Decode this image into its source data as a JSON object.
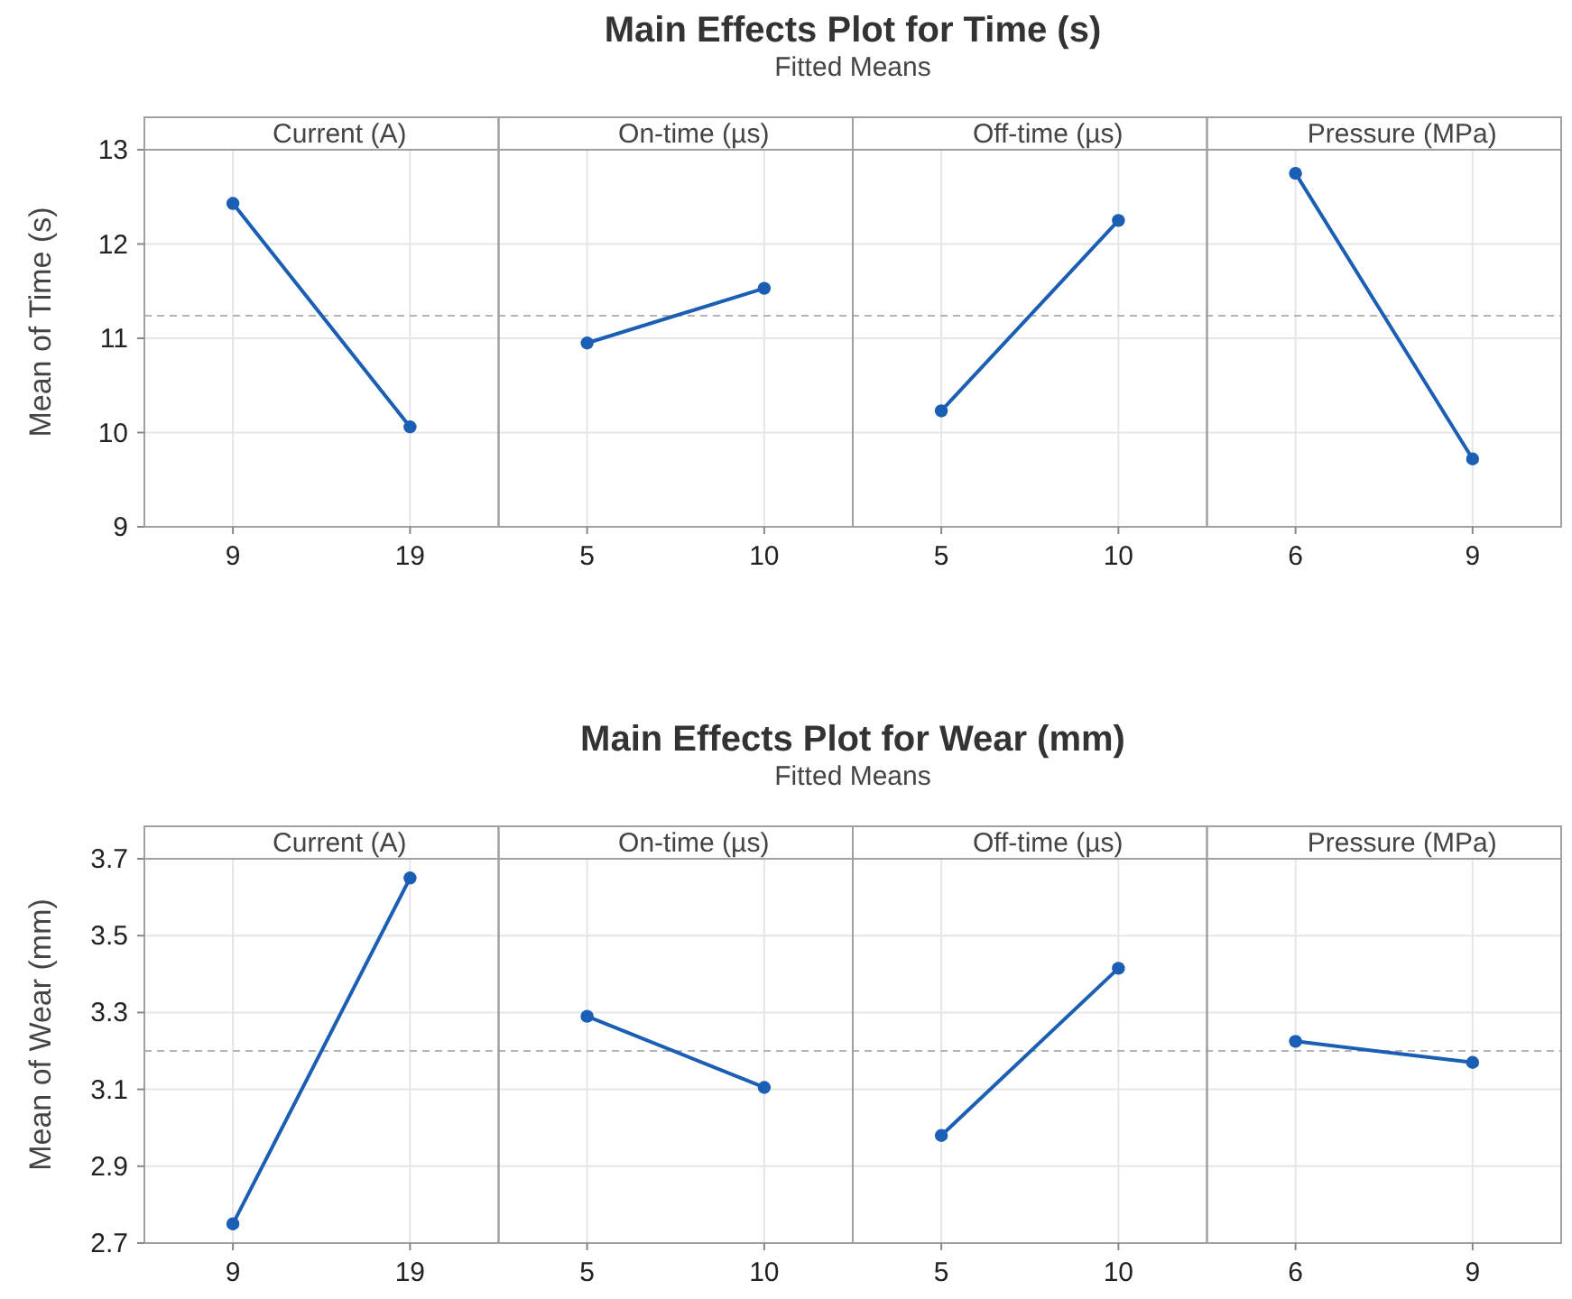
{
  "chart_data": [
    {
      "type": "line",
      "title": "Main Effects Plot for Time (s)",
      "subtitle": "Fitted Means",
      "ylabel": "Mean of Time (s)",
      "annotations": [
        "Current (A)",
        "On-time (µs)",
        "Off-time (µs)",
        "Pressure (MPa)"
      ],
      "categories": [
        "9",
        "19",
        "5",
        "10",
        "5",
        "10",
        "6",
        "9"
      ],
      "series": [
        {
          "color": "#1b5fb5",
          "values": [
            12.43,
            10.06,
            null,
            null,
            null,
            null,
            null,
            null
          ]
        },
        {
          "color": "#1b5fb5",
          "values": [
            null,
            null,
            10.95,
            11.53,
            null,
            null,
            null,
            null
          ]
        },
        {
          "color": "#1b5fb5",
          "values": [
            null,
            null,
            null,
            null,
            10.23,
            12.25,
            null,
            null
          ]
        },
        {
          "color": "#1b5fb5",
          "values": [
            null,
            null,
            null,
            null,
            null,
            null,
            12.75,
            9.72
          ]
        }
      ],
      "ylim": [
        9,
        13
      ],
      "yticks": [
        9,
        10,
        11,
        12,
        13
      ],
      "grid": true,
      "marker": "circle",
      "ref_lines": [
        {
          "axis": "y",
          "value": 11.24,
          "color": "#b4b4b4",
          "line_style": "dashed"
        }
      ]
    },
    {
      "type": "line",
      "title": "Main Effects Plot for Wear (mm)",
      "subtitle": "Fitted Means",
      "ylabel": "Mean of Wear (mm)",
      "annotations": [
        "Current (A)",
        "On-time (µs)",
        "Off-time (µs)",
        "Pressure (MPa)"
      ],
      "categories": [
        "9",
        "19",
        "5",
        "10",
        "5",
        "10",
        "6",
        "9"
      ],
      "series": [
        {
          "color": "#1b5fb5",
          "values": [
            2.75,
            3.65,
            null,
            null,
            null,
            null,
            null,
            null
          ]
        },
        {
          "color": "#1b5fb5",
          "values": [
            null,
            null,
            3.29,
            3.105,
            null,
            null,
            null,
            null
          ]
        },
        {
          "color": "#1b5fb5",
          "values": [
            null,
            null,
            null,
            null,
            2.98,
            3.415,
            null,
            null
          ]
        },
        {
          "color": "#1b5fb5",
          "values": [
            null,
            null,
            null,
            null,
            null,
            null,
            3.225,
            3.17
          ]
        }
      ],
      "ylim": [
        2.7,
        3.7
      ],
      "yticks": [
        2.7,
        2.9,
        3.1,
        3.3,
        3.5,
        3.7
      ],
      "grid": true,
      "marker": "circle",
      "ref_lines": [
        {
          "axis": "y",
          "value": 3.2,
          "color": "#b4b4b4",
          "line_style": "dashed"
        }
      ]
    }
  ]
}
